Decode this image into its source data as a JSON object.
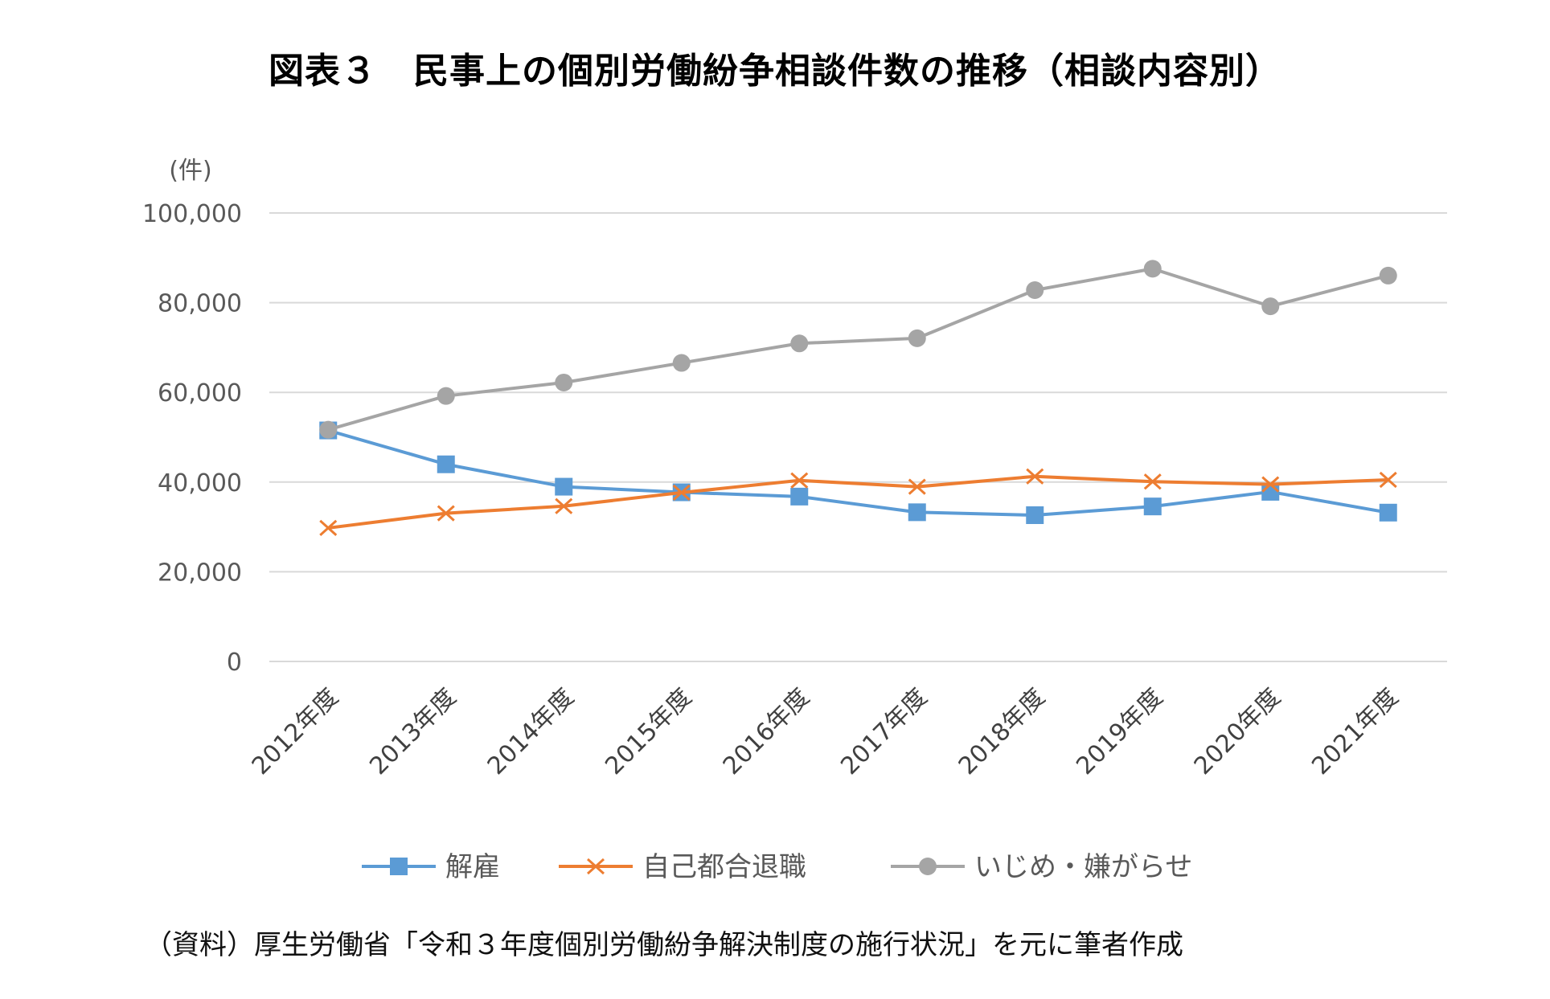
{
  "title": "図表３　民事上の個別労働紛争相談件数の推移（相談内容別）",
  "source": "（資料）厚生労働省「令和３年度個別労働紛争解決制度の施行状況」を元に筆者作成",
  "colors": {
    "解雇": "#5B9BD5",
    "自己都合退職": "#ED7D31",
    "いじめ・嫌がらせ": "#A5A5A5",
    "grid": "#D9D9D9",
    "tick_text": "#595959"
  },
  "chart_data": {
    "type": "line",
    "ylabel": "(件)",
    "ylim": [
      0,
      100000
    ],
    "yticks": [
      0,
      20000,
      40000,
      60000,
      80000,
      100000
    ],
    "ytick_labels": [
      "0",
      "20,000",
      "40,000",
      "60,000",
      "80,000",
      "100,000"
    ],
    "categories": [
      "2012年度",
      "2013年度",
      "2014年度",
      "2015年度",
      "2016年度",
      "2017年度",
      "2018年度",
      "2019年度",
      "2020年度",
      "2021年度"
    ],
    "grid": true,
    "legend_position": "bottom",
    "series": [
      {
        "name": "解雇",
        "marker": "square",
        "values": [
          51515,
          43956,
          38966,
          37718,
          36760,
          33269,
          32614,
          34561,
          37826,
          33189
        ]
      },
      {
        "name": "自己都合退職",
        "marker": "x",
        "values": [
          29763,
          33049,
          34626,
          37648,
          40364,
          38954,
          41258,
          40095,
          39498,
          40501
        ]
      },
      {
        "name": "いじめ・嫌がらせ",
        "marker": "circle",
        "values": [
          51670,
          59197,
          62191,
          66566,
          70917,
          72067,
          82797,
          87570,
          79190,
          86034
        ]
      }
    ]
  }
}
